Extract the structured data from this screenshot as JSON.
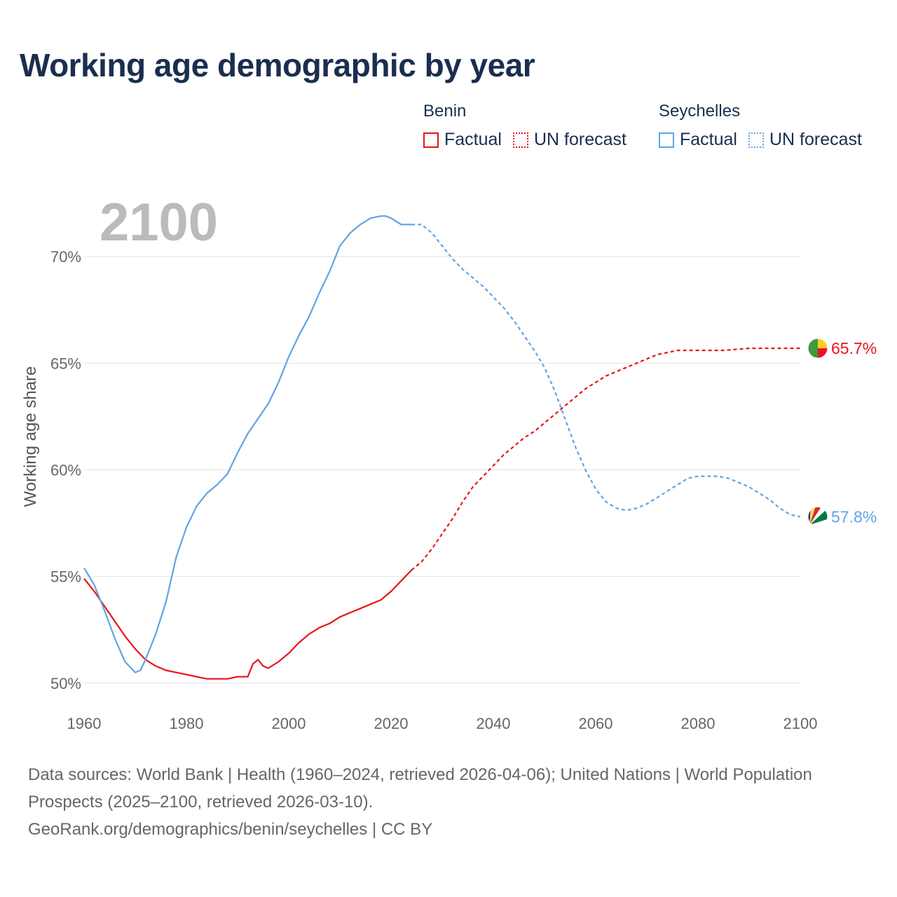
{
  "title": "Working age demographic by year",
  "legend": {
    "groups": [
      {
        "name": "Benin",
        "factual_label": "Factual",
        "forecast_label": "UN forecast",
        "color": "#e8141b"
      },
      {
        "name": "Seychelles",
        "factual_label": "Factual",
        "forecast_label": "UN forecast",
        "color": "#5fa4e6"
      }
    ]
  },
  "footer": {
    "sources": "Data sources: World Bank | Health (1960–2024, retrieved 2026-04-06); United Nations | World Population Prospects (2025–2100, retrieved 2026-03-10).",
    "credit": "GeoRank.org/demographics/benin/seychelles | CC BY"
  },
  "chart_data": {
    "type": "line",
    "title": "Working age demographic by year",
    "current_year_label": "2100",
    "xlabel": "",
    "ylabel": "Working age share",
    "xlim": [
      1960,
      2100
    ],
    "ylim": [
      49.5,
      72.5
    ],
    "x_ticks": [
      1960,
      1980,
      2000,
      2020,
      2040,
      2060,
      2080,
      2100
    ],
    "x_tick_labels": [
      "1960",
      "1980",
      "2000",
      "2020",
      "2040",
      "2060",
      "2080",
      "2100"
    ],
    "y_ticks": [
      50,
      55,
      60,
      65,
      70
    ],
    "y_tick_labels": [
      "50%",
      "55%",
      "60%",
      "65%",
      "70%"
    ],
    "grid": true,
    "forecast_start_year": 2025,
    "series": [
      {
        "name": "Benin",
        "color": "#e8141b",
        "end_label": "65.7%",
        "flag": "benin",
        "x": [
          1960,
          1962,
          1964,
          1966,
          1968,
          1970,
          1972,
          1974,
          1976,
          1978,
          1980,
          1982,
          1984,
          1986,
          1988,
          1990,
          1992,
          1993,
          1994,
          1995,
          1996,
          1998,
          2000,
          2002,
          2004,
          2006,
          2008,
          2010,
          2012,
          2014,
          2016,
          2018,
          2020,
          2022,
          2024,
          2026,
          2028,
          2030,
          2032,
          2034,
          2036,
          2038,
          2040,
          2042,
          2044,
          2046,
          2048,
          2050,
          2052,
          2054,
          2056,
          2058,
          2060,
          2062,
          2064,
          2066,
          2068,
          2070,
          2072,
          2074,
          2076,
          2078,
          2080,
          2085,
          2090,
          2095,
          2100
        ],
        "values": [
          54.9,
          54.3,
          53.6,
          52.9,
          52.2,
          51.6,
          51.1,
          50.8,
          50.6,
          50.5,
          50.4,
          50.3,
          50.2,
          50.2,
          50.2,
          50.3,
          50.3,
          50.9,
          51.1,
          50.8,
          50.7,
          51.0,
          51.4,
          51.9,
          52.3,
          52.6,
          52.8,
          53.1,
          53.3,
          53.5,
          53.7,
          53.9,
          54.3,
          54.8,
          55.3,
          55.7,
          56.3,
          57.0,
          57.7,
          58.5,
          59.2,
          59.7,
          60.2,
          60.7,
          61.1,
          61.5,
          61.8,
          62.2,
          62.6,
          63.0,
          63.4,
          63.8,
          64.1,
          64.4,
          64.6,
          64.8,
          65.0,
          65.2,
          65.4,
          65.5,
          65.6,
          65.6,
          65.6,
          65.6,
          65.7,
          65.7,
          65.7
        ]
      },
      {
        "name": "Seychelles",
        "color": "#5fa4e6",
        "end_label": "57.8%",
        "flag": "seychelles",
        "x": [
          1960,
          1962,
          1964,
          1966,
          1968,
          1970,
          1971,
          1972,
          1974,
          1976,
          1978,
          1980,
          1982,
          1984,
          1986,
          1988,
          1990,
          1992,
          1994,
          1996,
          1998,
          2000,
          2002,
          2004,
          2006,
          2008,
          2010,
          2012,
          2014,
          2016,
          2018,
          2019,
          2020,
          2022,
          2024,
          2026,
          2028,
          2030,
          2032,
          2034,
          2036,
          2038,
          2040,
          2042,
          2044,
          2046,
          2048,
          2050,
          2052,
          2054,
          2056,
          2058,
          2060,
          2062,
          2064,
          2066,
          2068,
          2070,
          2072,
          2074,
          2076,
          2078,
          2080,
          2082,
          2084,
          2086,
          2088,
          2090,
          2092,
          2094,
          2096,
          2098,
          2100
        ],
        "values": [
          55.4,
          54.6,
          53.4,
          52.1,
          51.0,
          50.5,
          50.6,
          51.1,
          52.3,
          53.8,
          55.9,
          57.3,
          58.3,
          58.9,
          59.3,
          59.8,
          60.8,
          61.7,
          62.4,
          63.1,
          64.1,
          65.3,
          66.3,
          67.2,
          68.3,
          69.3,
          70.5,
          71.1,
          71.5,
          71.8,
          71.9,
          71.9,
          71.8,
          71.5,
          71.5,
          71.5,
          71.1,
          70.5,
          69.9,
          69.4,
          69.0,
          68.6,
          68.1,
          67.6,
          67.0,
          66.3,
          65.6,
          64.8,
          63.7,
          62.4,
          61.1,
          60.0,
          59.1,
          58.5,
          58.2,
          58.1,
          58.2,
          58.4,
          58.7,
          59.0,
          59.3,
          59.6,
          59.7,
          59.7,
          59.7,
          59.6,
          59.4,
          59.2,
          58.9,
          58.6,
          58.2,
          57.9,
          57.8
        ]
      }
    ]
  }
}
